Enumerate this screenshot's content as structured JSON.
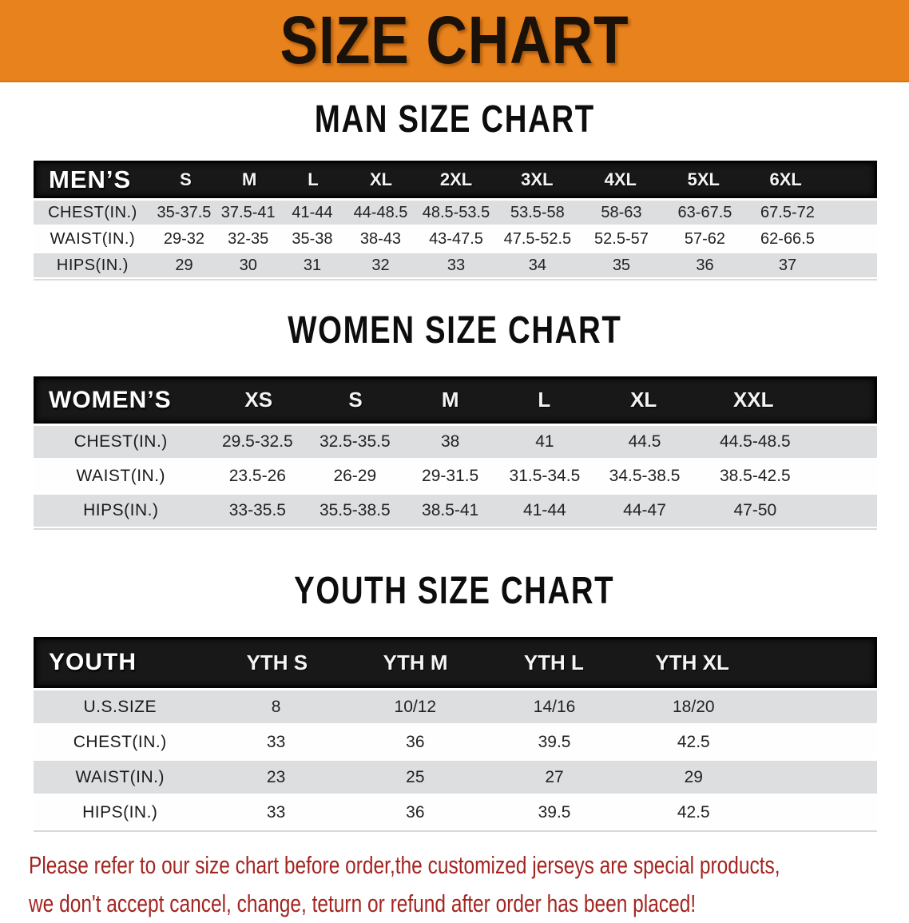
{
  "banner": {
    "title": "SIZE CHART"
  },
  "sections": [
    {
      "id": "men",
      "title": "MAN SIZE CHART",
      "header_label": "MEN’S",
      "sizes": [
        "S",
        "M",
        "L",
        "XL",
        "2XL",
        "3XL",
        "4XL",
        "5XL",
        "6XL"
      ],
      "rows": [
        {
          "label": "CHEST(IN.)",
          "values": [
            "35-37.5",
            "37.5-41",
            "41-44",
            "44-48.5",
            "48.5-53.5",
            "53.5-58",
            "58-63",
            "63-67.5",
            "67.5-72"
          ]
        },
        {
          "label": "WAIST(IN.)",
          "values": [
            "29-32",
            "32-35",
            "35-38",
            "38-43",
            "43-47.5",
            "47.5-52.5",
            "52.5-57",
            "57-62",
            "62-66.5"
          ]
        },
        {
          "label": "HIPS(IN.)",
          "values": [
            "29",
            "30",
            "31",
            "32",
            "33",
            "34",
            "35",
            "36",
            "37"
          ]
        }
      ]
    },
    {
      "id": "women",
      "title": "WOMEN SIZE CHART",
      "header_label": "WOMEN’S",
      "sizes": [
        "XS",
        "S",
        "M",
        "L",
        "XL",
        "XXL"
      ],
      "rows": [
        {
          "label": "CHEST(IN.)",
          "values": [
            "29.5-32.5",
            "32.5-35.5",
            "38",
            "41",
            "44.5",
            "44.5-48.5"
          ]
        },
        {
          "label": "WAIST(IN.)",
          "values": [
            "23.5-26",
            "26-29",
            "29-31.5",
            "31.5-34.5",
            "34.5-38.5",
            "38.5-42.5"
          ]
        },
        {
          "label": "HIPS(IN.)",
          "values": [
            "33-35.5",
            "35.5-38.5",
            "38.5-41",
            "41-44",
            "44-47",
            "47-50"
          ]
        }
      ]
    },
    {
      "id": "youth",
      "title": "YOUTH SIZE CHART",
      "header_label": "YOUTH",
      "sizes": [
        "YTH S",
        "YTH M",
        "YTH L",
        "YTH XL"
      ],
      "rows": [
        {
          "label": "U.S.SIZE",
          "values": [
            "8",
            "10/12",
            "14/16",
            "18/20"
          ]
        },
        {
          "label": "CHEST(IN.)",
          "values": [
            "33",
            "36",
            "39.5",
            "42.5"
          ]
        },
        {
          "label": "WAIST(IN.)",
          "values": [
            "23",
            "25",
            "27",
            "29"
          ]
        },
        {
          "label": "HIPS(IN.)",
          "values": [
            "33",
            "36",
            "39.5",
            "42.5"
          ]
        }
      ]
    }
  ],
  "footer": {
    "line1": "Please refer to our size chart before order,the customized jerseys are special products,",
    "line2": "we don't accept cancel, change, teturn or refund after order has been placed!"
  },
  "colors": {
    "banner_bg": "#E8821C",
    "band_bg": "#181818",
    "row_stripe": "#DDDEDF",
    "footer_red": "#A32521"
  }
}
